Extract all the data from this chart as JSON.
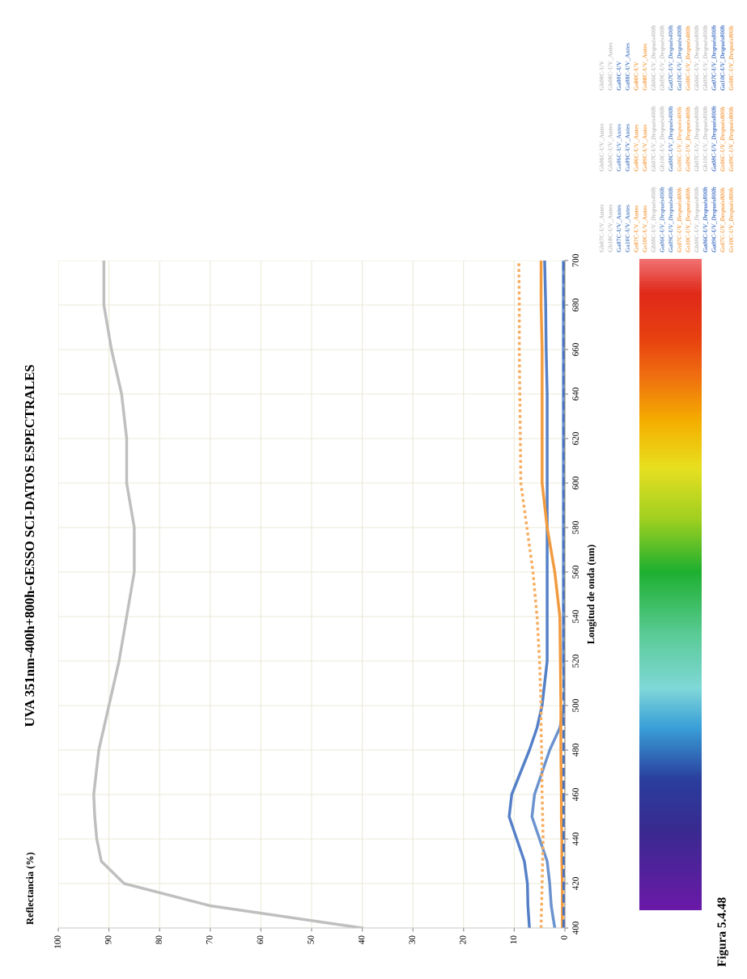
{
  "chart_data": {
    "type": "line",
    "title": "UVA 351nm-400h+800h-GESSO SCI-DATOS ESPECTRALES",
    "ylabel": "Longitud de onda (nm)",
    "annotations": [
      "Reflectancia (%)",
      "Figura 5.4.48"
    ],
    "xlim": [
      100,
      0
    ],
    "xticks": [
      100,
      90,
      80,
      70,
      60,
      50,
      40,
      30,
      20,
      10,
      0
    ],
    "ylim": [
      400,
      700
    ],
    "yticks": [
      400,
      420,
      440,
      460,
      480,
      500,
      520,
      540,
      560,
      580,
      600,
      620,
      640,
      660,
      680,
      700
    ],
    "grid": true,
    "legend": "right",
    "series": [
      {
        "name": "Gb00C-UV",
        "color": "#bfbfbf",
        "line_style": "solid",
        "x": [
          40,
          70,
          87,
          91.5,
          92.4,
          92.8,
          93,
          92,
          91,
          90,
          88,
          86.5,
          85,
          85,
          86.5,
          86.5,
          87.5,
          89.5,
          91,
          91
        ],
        "values": [
          400,
          410,
          420,
          430,
          440,
          450,
          460,
          480,
          490,
          500,
          520,
          540,
          560,
          580,
          600,
          620,
          640,
          660,
          680,
          700
        ]
      },
      {
        "name": "Gb06C-UV_Antes",
        "color": "#bfbfbf",
        "line_style": "solid"
      },
      {
        "name": "Gb07C-UV_Antes",
        "color": "#bfbfbf",
        "line_style": "solid"
      },
      {
        "name": "Gb08C-UV_Antes",
        "color": "#bfbfbf",
        "line_style": "solid"
      },
      {
        "name": "Gb09C-UV_Antes",
        "color": "#bfbfbf",
        "line_style": "solid"
      },
      {
        "name": "Gb10C-UV_Antes",
        "color": "#bfbfbf",
        "line_style": "solid"
      },
      {
        "name": "Ga00C-UV",
        "color": "#5580c8",
        "line_style": "solid",
        "x": [
          7,
          7.3,
          7.4,
          8,
          9.5,
          11,
          10.5,
          7,
          5.5,
          4.5,
          3.5,
          3.5,
          3.5,
          3.5,
          3.5,
          3.5,
          3.5,
          3.7,
          3.8,
          4
        ],
        "values": [
          400,
          410,
          420,
          430,
          440,
          450,
          460,
          480,
          490,
          500,
          520,
          540,
          560,
          580,
          600,
          620,
          640,
          660,
          680,
          700
        ]
      },
      {
        "name": "Ga06C-UV_Antes",
        "color": "#6b93cf",
        "line_style": "solid",
        "x": [
          2,
          2.7,
          3,
          3.5,
          5,
          6.5,
          6,
          3,
          1,
          0,
          0.3,
          0.3,
          0.3,
          0.3,
          0.3,
          0.3,
          0.3,
          0.3,
          0.3,
          0.3
        ],
        "values": [
          400,
          410,
          420,
          430,
          440,
          450,
          460,
          480,
          490,
          500,
          520,
          540,
          560,
          580,
          600,
          620,
          640,
          660,
          680,
          700
        ]
      },
      {
        "name": "Ga07C-UV_Antes",
        "color": "#5b86c5",
        "line_style": "solid"
      },
      {
        "name": "Ga08C-UV_Antes",
        "color": "#5b86c5",
        "line_style": "solid"
      },
      {
        "name": "Ga09C-UV_Antes",
        "color": "#5b86c5",
        "line_style": "solid"
      },
      {
        "name": "Ga10C-UV_Antes",
        "color": "#5b86c5",
        "line_style": "solid"
      },
      {
        "name": "Gs00C-UV",
        "color": "#f29a3e",
        "line_style": "solid",
        "x": [
          0.5,
          0.5,
          0.5,
          0.6,
          0.6,
          0.7,
          0.7,
          0.8,
          0.8,
          0.8,
          0.9,
          1,
          2,
          3.5,
          4.5,
          4.5,
          4.5,
          4.5,
          4.7,
          4.7
        ],
        "values": [
          400,
          410,
          420,
          430,
          440,
          450,
          460,
          480,
          490,
          500,
          520,
          540,
          560,
          580,
          600,
          620,
          640,
          660,
          680,
          700
        ]
      },
      {
        "name": "Gs06C-UV_Antes",
        "color": "#f4a04a",
        "line_style": "solid"
      },
      {
        "name": "Gs07C-UV_Antes",
        "color": "#f4a04a",
        "line_style": "solid"
      },
      {
        "name": "Gs08C-UV_Antes",
        "color": "#f4a04a",
        "line_style": "solid"
      },
      {
        "name": "Gs09C-UV_Antes",
        "color": "#f4a04a",
        "line_style": "solid"
      },
      {
        "name": "Gs10C-UV_Antes",
        "color": "#f4a04a",
        "line_style": "solid"
      },
      {
        "name": "Gb06C-UV_Después400h",
        "color": "#bfbfbf",
        "line_style": "dotted"
      },
      {
        "name": "Gb07C-UV_Después400h",
        "color": "#bfbfbf",
        "line_style": "dotted"
      },
      {
        "name": "Gb08C-UV_Después400h",
        "color": "#bfbfbf",
        "line_style": "dotted"
      },
      {
        "name": "Gb09C-UV_Después400h",
        "color": "#bfbfbf",
        "line_style": "dotted"
      },
      {
        "name": "Gb10C-UV_Después400h",
        "color": "#bfbfbf",
        "line_style": "dotted"
      },
      {
        "name": "Ga06C-UV_Después400h",
        "color": "#5b86c5",
        "line_style": "dotted"
      },
      {
        "name": "Ga07C-UV_Después400h",
        "color": "#5b86c5",
        "line_style": "dotted"
      },
      {
        "name": "Ga08C-UV_Después400h",
        "color": "#5b86c5",
        "line_style": "dotted"
      },
      {
        "name": "Ga09C-UV_Después400h",
        "color": "#5b86c5",
        "line_style": "dotted"
      },
      {
        "name": "Ga10C-UV_Después400h",
        "color": "#5b86c5",
        "line_style": "dotted"
      },
      {
        "name": "Gs06C-UV_Después400h",
        "color": "#f7ad60",
        "line_style": "dotted",
        "x": [
          4.7,
          4.6,
          4.5,
          4.4,
          4.3,
          4.4,
          4.5,
          4.6,
          4.7,
          4.7,
          5,
          5.5,
          6.3,
          7.5,
          8.7,
          8.8,
          8.9,
          9,
          9,
          9.1
        ],
        "values": [
          400,
          410,
          420,
          430,
          440,
          450,
          460,
          480,
          490,
          500,
          520,
          540,
          560,
          580,
          600,
          620,
          640,
          660,
          680,
          700
        ]
      },
      {
        "name": "Gs07C-UV_Después400h",
        "color": "#f4a04a",
        "line_style": "dotted"
      },
      {
        "name": "Gs08C-UV_Después400h",
        "color": "#f4a04a",
        "line_style": "dotted"
      },
      {
        "name": "Gs09C-UV_Después400h",
        "color": "#f4a04a",
        "line_style": "dotted"
      },
      {
        "name": "Gs10C-UV_Después400h",
        "color": "#f4a04a",
        "line_style": "dotted"
      },
      {
        "name": "Gb06C-UV_Después800h",
        "color": "#bfbfbf",
        "line_style": "dashed"
      },
      {
        "name": "Gb07C-UV_Después800h",
        "color": "#bfbfbf",
        "line_style": "dashed"
      },
      {
        "name": "Gb08C-UV_Después800h",
        "color": "#bfbfbf",
        "line_style": "dashed"
      },
      {
        "name": "Gb09C-UV_Después800h",
        "color": "#bfbfbf",
        "line_style": "dashed"
      },
      {
        "name": "Gb10C-UV_Después800h",
        "color": "#bfbfbf",
        "line_style": "dashed"
      },
      {
        "name": "Ga06C-UV_Después800h",
        "color": "#4472c4",
        "line_style": "dashed",
        "x": [
          0.2,
          0.2,
          0.2,
          0.2,
          0.2,
          0.2,
          0.2,
          0.2,
          0.2,
          0.2,
          0.2,
          0.2,
          0.2,
          0.2,
          0.2,
          0.2,
          0.2,
          0.2,
          0.2,
          0.2
        ],
        "values": [
          400,
          410,
          420,
          430,
          440,
          450,
          460,
          480,
          490,
          500,
          520,
          540,
          560,
          580,
          600,
          620,
          640,
          660,
          680,
          700
        ]
      },
      {
        "name": "Ga07C-UV_Después800h",
        "color": "#4472c4",
        "line_style": "dashed"
      },
      {
        "name": "Ga08C-UV_Después800h",
        "color": "#4472c4",
        "line_style": "dashed"
      },
      {
        "name": "Ga09C-UV_Después800h",
        "color": "#4472c4",
        "line_style": "dashed"
      },
      {
        "name": "Ga10C-UV_Después800h",
        "color": "#4472c4",
        "line_style": "dashed"
      },
      {
        "name": "Gs06C-UV_Después800h",
        "color": "#f4a04a",
        "line_style": "dashed"
      },
      {
        "name": "Gs07C-UV_Después800h",
        "color": "#f4a04a",
        "line_style": "dashed"
      },
      {
        "name": "Gs08C-UV_Después800h",
        "color": "#f4a04a",
        "line_style": "dashed"
      },
      {
        "name": "Gs09C-UV_Después800h",
        "color": "#f4a04a",
        "line_style": "dashed"
      },
      {
        "name": "Gs10C-UV_Después800h",
        "color": "#f4a04a",
        "line_style": "dashed"
      }
    ]
  }
}
